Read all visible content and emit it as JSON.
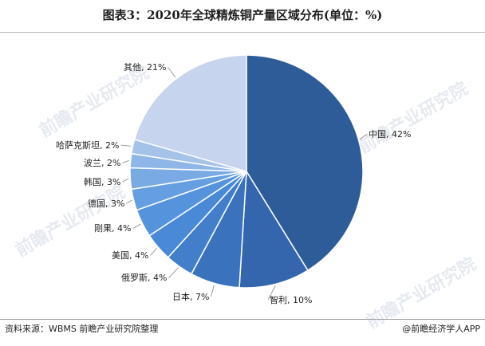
{
  "title": "图表3：2020年全球精炼铜产量区域分布(单位：%)",
  "source": "资料来源：WBMS 前瞻产业研究院整理",
  "brand": "@前瞻经济学人APP",
  "watermark": "前瞻产业研究院",
  "chart_data": {
    "type": "pie",
    "title": "图表3：2020年全球精炼铜产量区域分布(单位：%)",
    "unit": "%",
    "slices": [
      {
        "label": "中国",
        "value": 42,
        "color": "#2e5c99"
      },
      {
        "label": "智利",
        "value": 10,
        "color": "#3466ad"
      },
      {
        "label": "日本",
        "value": 7,
        "color": "#3b72be"
      },
      {
        "label": "俄罗斯",
        "value": 4,
        "color": "#437ecb"
      },
      {
        "label": "美国",
        "value": 4,
        "color": "#4a89d6"
      },
      {
        "label": "刚果",
        "value": 4,
        "color": "#5594dd"
      },
      {
        "label": "德国",
        "value": 3,
        "color": "#659fe1"
      },
      {
        "label": "韩国",
        "value": 3,
        "color": "#7aaae4"
      },
      {
        "label": "波兰",
        "value": 2,
        "color": "#8eb6e6"
      },
      {
        "label": "哈萨克斯坦",
        "value": 2,
        "color": "#a5c3e8"
      },
      {
        "label": "其他",
        "value": 21,
        "color": "#c7d4ee"
      }
    ]
  }
}
